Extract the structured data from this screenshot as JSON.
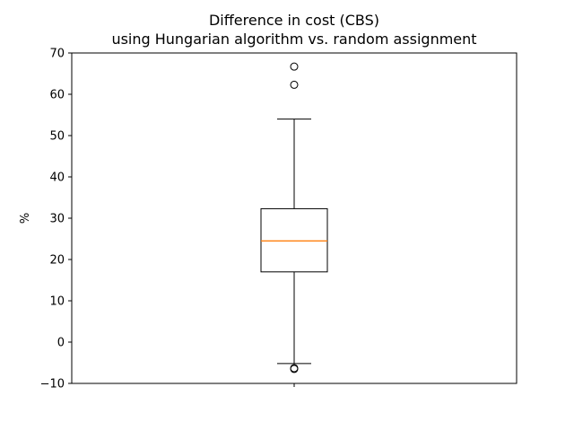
{
  "chart_data": {
    "type": "box",
    "title": "Difference in cost (CBS)",
    "subtitle": "using Hungarian algorithm vs. random assignment",
    "xlabel": "",
    "ylabel": "%",
    "ylim": [
      -10,
      70
    ],
    "yticks": [
      "−10",
      "0",
      "10",
      "20",
      "30",
      "40",
      "50",
      "60",
      "70"
    ],
    "ytick_values": [
      -10,
      0,
      10,
      20,
      30,
      40,
      50,
      60,
      70
    ],
    "grid": false,
    "boxes": [
      {
        "whisker_low": -5.2,
        "q1": 17.0,
        "median": 24.5,
        "q3": 32.3,
        "whisker_high": 54.0,
        "outliers": [
          66.7,
          62.3,
          -6.3,
          -6.5
        ]
      }
    ],
    "colors": {
      "box": "#000000",
      "median": "#ff7f0e",
      "whisker": "#000000",
      "outlier": "#000000"
    }
  }
}
